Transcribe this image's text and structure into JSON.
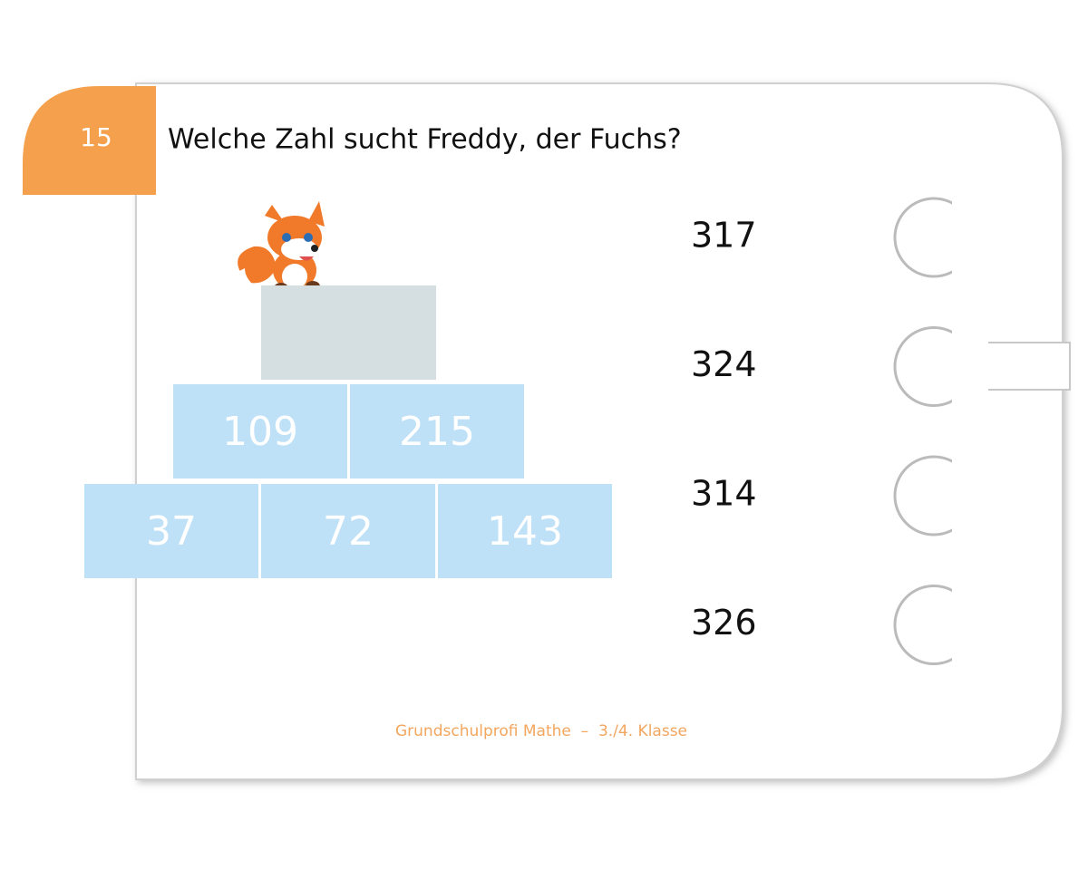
{
  "badge": "15",
  "question": "Welche Zahl sucht Freddy, der Fuchs?",
  "pyramid": {
    "rows": [
      [
        "109",
        "215"
      ],
      [
        "37",
        "72",
        "143"
      ]
    ]
  },
  "answers": [
    "317",
    "324",
    "314",
    "326"
  ],
  "footer": "Grundschulprofi Mathe  –  3./4. Klasse"
}
